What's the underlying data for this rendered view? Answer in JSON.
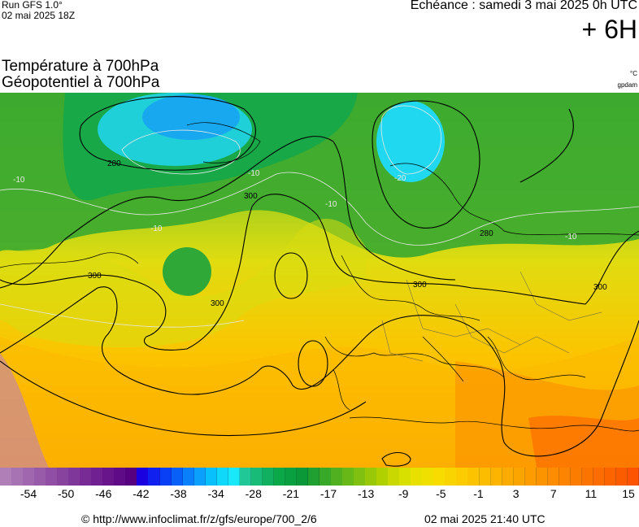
{
  "header": {
    "run_label": "Run GFS 1.0°",
    "run_date": "02 mai 2025 18Z",
    "echeance": "Echéance : samedi 3 mai 2025 0h UTC",
    "lead_time": "+ 6H"
  },
  "titles": {
    "line1": "Température à 700hPa",
    "line2": "Géopotentiel à 700hPa"
  },
  "units": {
    "temperature": "°C",
    "geopotential": "gpdam"
  },
  "map": {
    "contour_labels": [
      {
        "id": "280a",
        "text": "280"
      },
      {
        "id": "300a",
        "text": "300"
      },
      {
        "id": "300b",
        "text": "300"
      },
      {
        "id": "300c",
        "text": "300"
      },
      {
        "id": "280b",
        "text": "280"
      },
      {
        "id": "300d",
        "text": "300"
      },
      {
        "id": "300e",
        "text": "300"
      }
    ],
    "isotherm_labels": [
      {
        "id": "m10a",
        "text": "-10"
      },
      {
        "id": "m10b",
        "text": "-10"
      },
      {
        "id": "m10c",
        "text": "-10"
      },
      {
        "id": "m20a",
        "text": "-20"
      },
      {
        "id": "m10d",
        "text": "-10"
      },
      {
        "id": "m10e",
        "text": "-10"
      }
    ]
  },
  "colorbar": {
    "colors": [
      "#b07fb8",
      "#a873b3",
      "#a067ae",
      "#985ba9",
      "#904fa4",
      "#88439f",
      "#80379a",
      "#782b95",
      "#702090",
      "#68158b",
      "#5f0a86",
      "#560080",
      "#1a00e0",
      "#1020ee",
      "#0a40f5",
      "#0860f8",
      "#0a80fa",
      "#0aa0fb",
      "#0ac0fc",
      "#10d8fb",
      "#18e8fa",
      "#20c898",
      "#18bc78",
      "#10b060",
      "#0aa848",
      "#08a040",
      "#0a9838",
      "#20a030",
      "#38a828",
      "#50b020",
      "#68b818",
      "#80c010",
      "#98c808",
      "#b0d000",
      "#c8d800",
      "#d8e000",
      "#e8e000",
      "#f0e000",
      "#f8dc00",
      "#fad400",
      "#fccc00",
      "#fcc400",
      "#fcbc00",
      "#fcb400",
      "#fcac00",
      "#fca400",
      "#fc9c00",
      "#fc9400",
      "#fc8c00",
      "#fc8400",
      "#fc7c00",
      "#fc7400",
      "#fc6c00",
      "#fc6400",
      "#fc5c00",
      "#fc5400"
    ],
    "tick_labels": [
      "-54",
      "-50",
      "-46",
      "-42",
      "-38",
      "-34",
      "-28",
      "-21",
      "-17",
      "-13",
      "-9",
      "-5",
      "-1",
      "3",
      "7",
      "11",
      "15"
    ]
  },
  "footer": {
    "url": "© http://www.infoclimat.fr/z/gfs/europe/700_2/6",
    "timestamp": "02 mai 2025 21:40 UTC"
  }
}
